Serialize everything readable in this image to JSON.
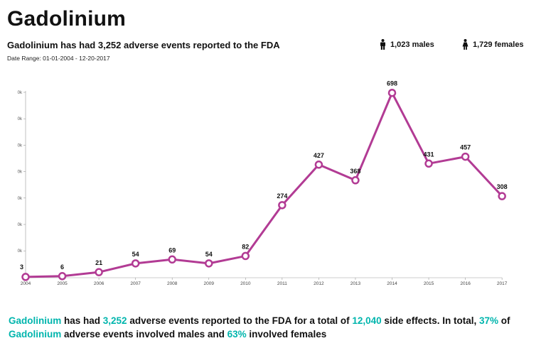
{
  "header": {
    "title": "Gadolinium",
    "subtitle": "Gadolinium has had 3,252 adverse events reported to the FDA",
    "date_range": "Date Range: 01-01-2004 - 12-20-2017"
  },
  "stats": {
    "males_label": "1,023 males",
    "females_label": "1,729 females",
    "male_icon": "male-icon",
    "female_icon": "female-icon"
  },
  "colors": {
    "accent": "#b23b94",
    "highlight": "#00b5ad",
    "text": "#111111"
  },
  "chart_data": {
    "type": "line",
    "title": "",
    "xlabel": "",
    "ylabel": "",
    "categories": [
      "2004",
      "2005",
      "2006",
      "2007",
      "2008",
      "2009",
      "2010",
      "2011",
      "2012",
      "2013",
      "2014",
      "2015",
      "2016",
      "2017"
    ],
    "values": [
      3,
      6,
      21,
      54,
      69,
      54,
      82,
      274,
      427,
      368,
      698,
      431,
      457,
      308
    ],
    "y_tick_labels": [
      "0k",
      "0k",
      "0k",
      "0k",
      "0k",
      "0k",
      "0k"
    ],
    "ylim": [
      0,
      700
    ],
    "grid": false
  },
  "summary": {
    "drug_1": "Gadolinium",
    "part_1": " has had ",
    "events": "3,252",
    "part_2": " adverse events reported to the FDA for a total of ",
    "side_effects": "12,040",
    "part_3": " side effects. In total, ",
    "male_pct": "37%",
    "part_4": " of ",
    "drug_2": "Gadolinium",
    "part_5": " adverse events involved males and ",
    "female_pct": "63%",
    "part_6": " involved females"
  }
}
